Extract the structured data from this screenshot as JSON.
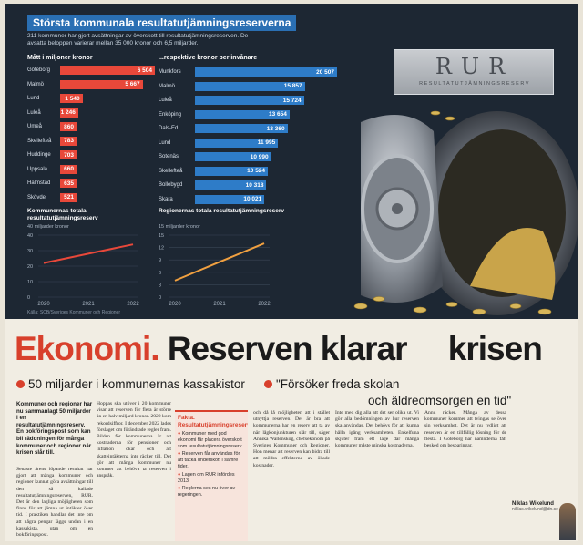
{
  "banner": {
    "title": "Största kommunala resultatutjämningsreserverna",
    "subtitle": "211 kommuner har gjort avsättningar av överskott till resultatutjämningsreserven. De avsatta beloppen varierar mellan 35 000 kronor och 6,5 miljarder."
  },
  "chart_data": [
    {
      "type": "bar",
      "title": "Mått i miljoner kronor",
      "categories": [
        "Göteborg",
        "Malmö",
        "Lund",
        "Luleå",
        "Umeå",
        "Skellefteå",
        "Huddinge",
        "Uppsala",
        "Halmstad",
        "Skövde"
      ],
      "values": [
        6504,
        5667,
        1540,
        1246,
        860,
        783,
        703,
        660,
        635,
        521
      ],
      "value_labels": [
        "6 504",
        "5 667",
        "1 540",
        "1 246",
        "860",
        "783",
        "703",
        "660",
        "635",
        "521"
      ],
      "color": "#e8483a"
    },
    {
      "type": "bar",
      "title": "...respektive kronor per invånare",
      "categories": [
        "Munkfors",
        "Malmö",
        "Luleå",
        "Enköping",
        "Dals-Ed",
        "Lund",
        "Sotenäs",
        "Skellefteå",
        "Bollebygd",
        "Skara"
      ],
      "values": [
        20507,
        15857,
        15724,
        13654,
        13360,
        11995,
        10990,
        10524,
        10318,
        10021
      ],
      "value_labels": [
        "20 507",
        "15 857",
        "15 724",
        "13 654",
        "13 360",
        "11 995",
        "10 990",
        "10 524",
        "10 318",
        "10 021"
      ],
      "color": "#2e7cc8"
    },
    {
      "type": "line",
      "title": "Kommunernas totala resultatutjämningsreserv",
      "ylabel": "40 miljarder kronor",
      "x": [
        "2020",
        "2021",
        "2022"
      ],
      "y": [
        22,
        28,
        34
      ],
      "ylim": [
        0,
        40
      ],
      "yticks": [
        "40",
        "30",
        "20",
        "10",
        "0"
      ],
      "color": "#e8483a"
    },
    {
      "type": "line",
      "title": "Regionernas totala resultatutjämningsreserv",
      "ylabel": "15 miljarder kronor",
      "x": [
        "2020",
        "2021",
        "2022"
      ],
      "y": [
        4,
        8.5,
        13
      ],
      "ylim": [
        0,
        15
      ],
      "yticks": [
        "15",
        "12",
        "9",
        "6",
        "3",
        "0"
      ],
      "color": "#f0a040"
    }
  ],
  "source_note": "Källa: SCB/Sveriges Kommuner och Regioner",
  "plaque": {
    "title": "RUR",
    "subtitle": "RESULTATUTJÄMNINGSRESERV"
  },
  "headline": {
    "red": "Ekonomi.",
    "dark": "Reserven klarar",
    "dark2": "krisen"
  },
  "subheads": {
    "left": "50 miljarder i kommunernas kassakistor",
    "right": "\"Försöker freda skolan",
    "right2": "och äldreomsorgen en tid\""
  },
  "articles": {
    "intro": "Kommuner och regioner har nu sammanlagt 50 miljarder i en resultatutjämningsreserv. En bokföringspost som kan bli räddningen för många kommuner och regioner när krisen slår till.",
    "col1": "Senaste årens löpande resultat har gjort att många kommuner och regioner kunnat göra avsättningar till den så kallade resultatutjämningsreserven, RUR. Det är den lagliga möjligheten som finns för att jämna ut intäkter över tid. I praktiken handlar det inte om att några pengar läggs undan i en kassakista, utan om en bokföringspost.",
    "col2": "Hoppas ska utöver i 20 kommuner visar att reserven för flera är större än en halv miljard kronor. 2022 kom rekordsiffror. I december 2022 lades förslaget om förändrade regler fram. Bilden för kommunerna är att kostnaderna för pensioner och inflation ökar och att skatteintäkterna inte räcker till. Det gör att många kommuner nu kommer att behöva ta reserven i anspråk.",
    "facts_title": "Fakta. Resultatutjämningsreserv",
    "facts": [
      "Kommuner med god ekonomi får placera överskott som resultatutjämningsreserv.",
      "Reserven får användas för att täcka underskott i sämre tider.",
      "Lagen om RUR infördes 2013.",
      "Reglerna ses nu över av regeringen."
    ],
    "col3": "och då lå möjligheten att i stället utnyttja reserven. Det är bra att kommunerna har en reserv att ta av när lågkonjunkturen slår till, säger Annika Wallenskog, chefsekonom på Sveriges Kommuner och Regioner. Hon menar att reserven kan bidra till att mildra effekterna av ökade kostnader.",
    "col4": "Inte med dig alla att det ser olika ut. Vi gör alla bedömningen av hur reserven ska användas. Det behövs för att kunna hålla igång verksamheten. Enkelfuna skjuter fram ett läge där många kommuner måste minska kostnaderna.",
    "col5": "Ännu räcker. Många av dessa kommuner kommer att tvingas se över sin verksamhet. Det är nu tydligt att reserven är en tillfällig lösning för de flesta. I Göteborg har nämnderna fått besked om besparingar."
  },
  "byline": {
    "name": "Niklas Wikelund",
    "role": "niklas.wikelund@dn.se"
  }
}
